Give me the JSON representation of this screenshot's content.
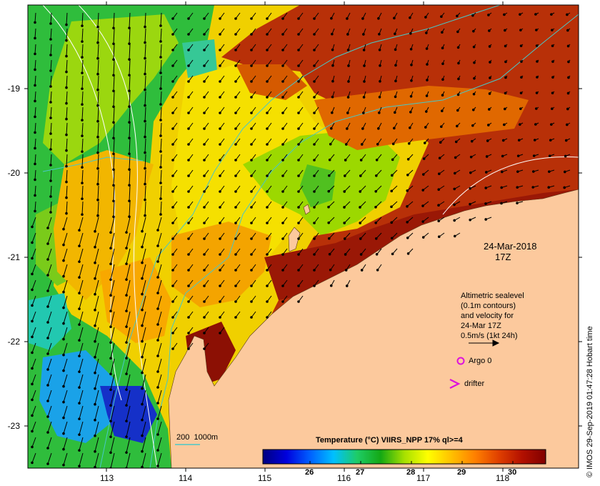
{
  "map": {
    "date_label": "24-Mar-2018",
    "time_label": "17Z",
    "y_ticks": [
      "-19",
      "-20",
      "-21",
      "-22",
      "-23"
    ],
    "x_ticks": [
      "113",
      "114",
      "115",
      "116",
      "117",
      "118"
    ],
    "lat_range": [
      -23.5,
      -18.0
    ],
    "lon_range": [
      112.0,
      119.0
    ],
    "land_color": "#fcc99d",
    "velocity_legend": {
      "lines": [
        "Altimetric sealevel",
        "(0.1m contours)",
        "and velocity for",
        "24-Mar 17Z",
        "0.5m/s (1kt 24h)"
      ]
    },
    "argo_label": "Argo 0",
    "drifter_label": "drifter",
    "bathymetry_label": "200  1000m",
    "bathymetry_color": "#48c8c8",
    "marker_color": "#dd11dd"
  },
  "colorbar": {
    "title": "Temperature (°C) VIIRS_NPP 17% ql>=4",
    "ticks": [
      "26",
      "27",
      "28",
      "29",
      "30"
    ],
    "range": [
      25.1,
      30.65
    ],
    "colors": [
      "#00007f",
      "#0000dd",
      "#0060ff",
      "#00c0ff",
      "#1ecc66",
      "#14a814",
      "#a6e000",
      "#ffff00",
      "#ffc000",
      "#ff8000",
      "#e04000",
      "#b31000",
      "#800000"
    ]
  },
  "credit": "© IMOS 29-Sep-2019 01:47:28 Hobart time"
}
